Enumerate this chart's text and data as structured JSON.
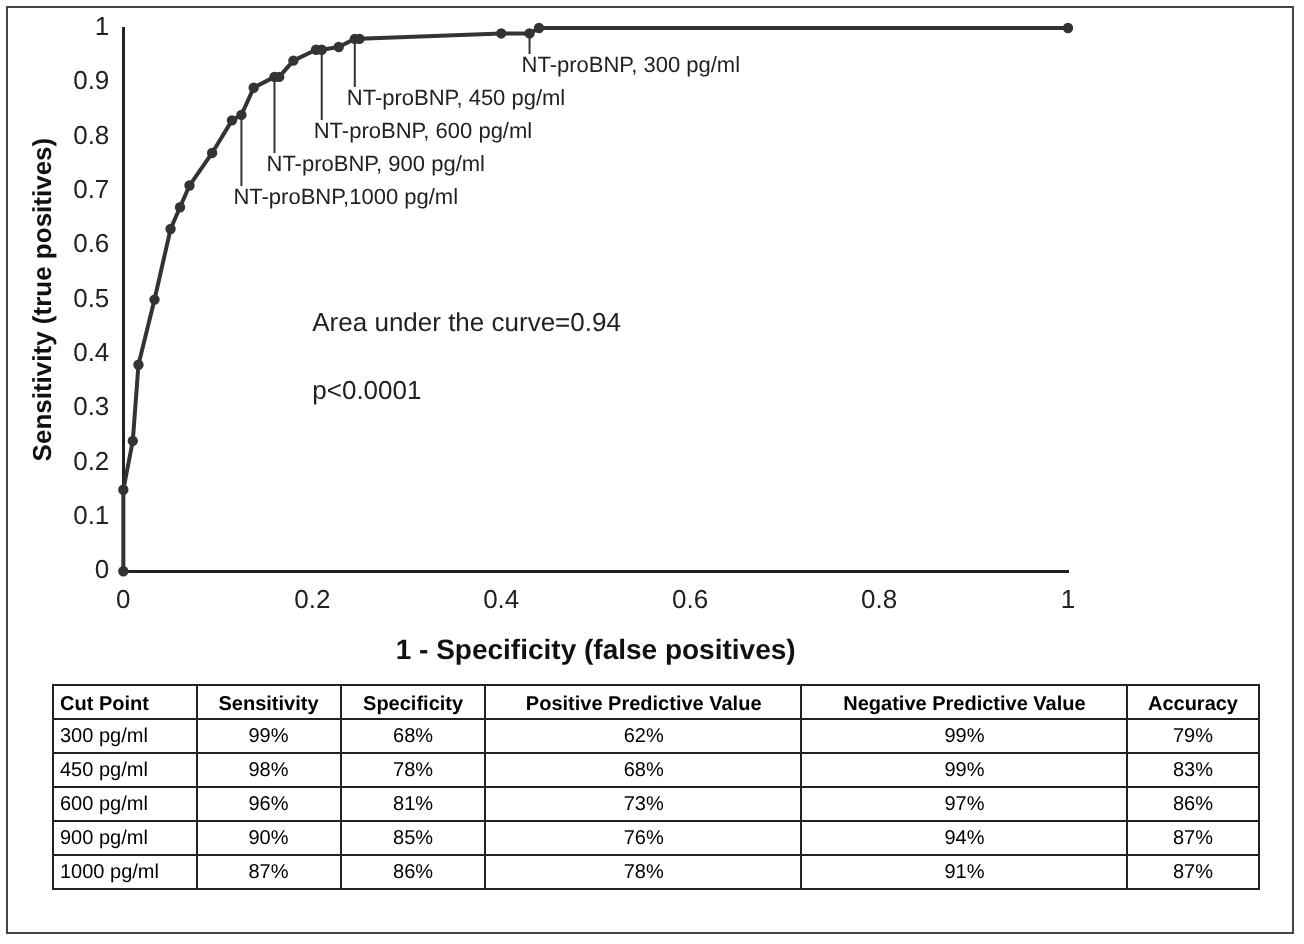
{
  "chart_data": [
    {
      "type": "line",
      "xlabel": "1 - Specificity (false positives)",
      "ylabel": "Sensitivity (true positives)",
      "x": [
        0,
        0,
        0.01,
        0.016,
        0.033,
        0.05,
        0.06,
        0.07,
        0.094,
        0.115,
        0.125,
        0.138,
        0.16,
        0.165,
        0.18,
        0.204,
        0.21,
        0.228,
        0.245,
        0.25,
        0.4,
        0.43,
        0.44,
        1
      ],
      "series": [
        {
          "color": "#333333",
          "values": [
            0,
            0.15,
            0.24,
            0.38,
            0.5,
            0.63,
            0.67,
            0.71,
            0.77,
            0.83,
            0.84,
            0.89,
            0.91,
            0.91,
            0.94,
            0.96,
            0.96,
            0.965,
            0.98,
            0.98,
            0.99,
            0.99,
            1,
            1
          ]
        }
      ],
      "xlim": [
        0,
        1
      ],
      "xticks": [
        0,
        0.2,
        0.4,
        0.6,
        0.8,
        1
      ],
      "ylim": [
        0,
        1
      ],
      "yticks": [
        0,
        0.1,
        0.2,
        0.3,
        0.4,
        0.5,
        0.6,
        0.7,
        0.8,
        0.9,
        1
      ],
      "grid": false,
      "legend": false,
      "marker": "circle",
      "line_style": "solid",
      "annotations": [
        {
          "text": "NT-proBNP, 300 pg/ml",
          "x": 0.43,
          "y": 0.99
        },
        {
          "text": "NT-proBNP, 450 pg/ml",
          "x": 0.245,
          "y": 0.98
        },
        {
          "text": "NT-proBNP, 600 pg/ml",
          "x": 0.21,
          "y": 0.96
        },
        {
          "text": "NT-proBNP, 900 pg/ml",
          "x": 0.16,
          "y": 0.91
        },
        {
          "text": "NT-proBNP,1000 pg/ml",
          "x": 0.125,
          "y": 0.84
        },
        "Area under the curve=0.94",
        "p<0.0001"
      ]
    },
    {
      "type": "heatmap",
      "ylabel": "Cut Point",
      "categories": [
        "Sensitivity",
        "Specificity",
        "Positive Predictive Value",
        "Negative Predictive Value",
        "Accuracy"
      ],
      "y_categories": [
        "300 pg/ml",
        "450 pg/ml",
        "600 pg/ml",
        "900 pg/ml",
        "1000 pg/ml"
      ],
      "cells": [
        [
          99,
          68,
          62,
          99,
          79
        ],
        [
          98,
          78,
          68,
          99,
          83
        ],
        [
          96,
          81,
          73,
          97,
          86
        ],
        [
          90,
          85,
          76,
          94,
          87
        ],
        [
          87,
          86,
          78,
          91,
          87
        ]
      ],
      "cell_labels": [
        [
          "99%",
          "68%",
          "62%",
          "99%",
          "79%"
        ],
        [
          "98%",
          "78%",
          "68%",
          "99%",
          "83%"
        ],
        [
          "96%",
          "81%",
          "73%",
          "97%",
          "86%"
        ],
        [
          "90%",
          "85%",
          "76%",
          "94%",
          "87%"
        ],
        [
          "87%",
          "86%",
          "78%",
          "91%",
          "87%"
        ]
      ]
    }
  ]
}
